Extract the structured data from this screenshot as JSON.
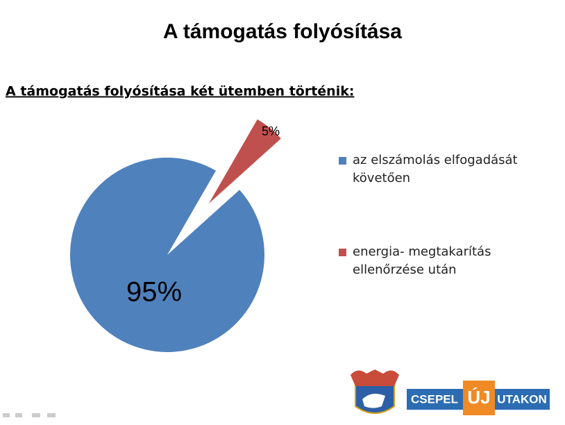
{
  "chart_data": {
    "type": "pie",
    "title": "A támogatás folyósítása",
    "subtitle": "A támogatás folyósítása két ütemben történik:",
    "categories": [
      "az elszámolás elfogadását követően",
      "energia- megtakarítás ellenőrzése után"
    ],
    "values": [
      95,
      5
    ],
    "value_labels": [
      "95%",
      "5%"
    ],
    "colors": [
      "#4f81bd",
      "#c0504d"
    ]
  },
  "logo": {
    "left": "CSEPEL",
    "middle": "ÚJ",
    "right": "UTAKON"
  }
}
